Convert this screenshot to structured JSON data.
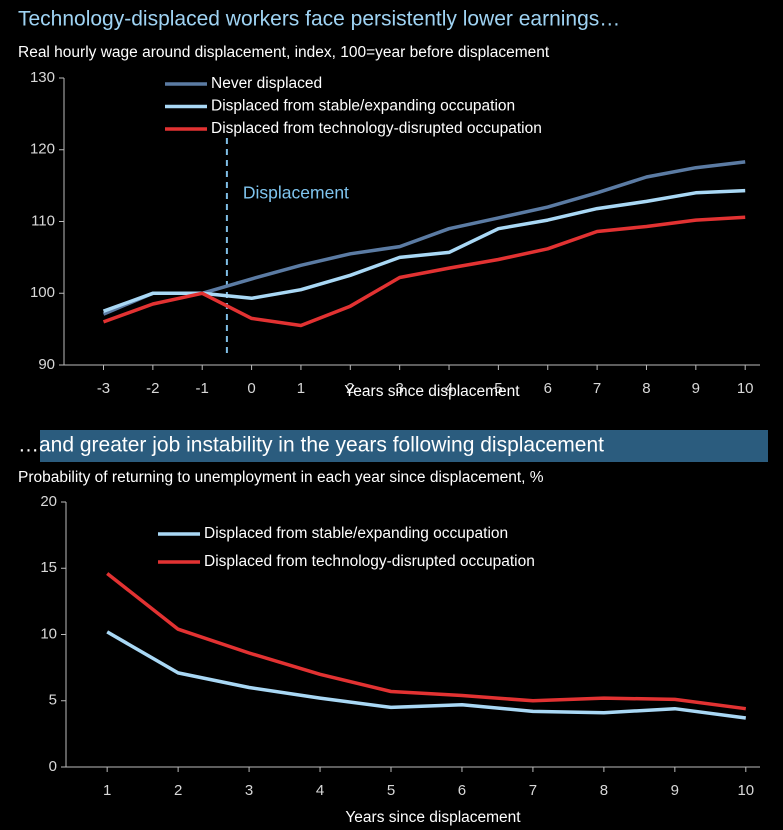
{
  "chart_data": [
    {
      "type": "line",
      "title": "Technology-displaced workers face persistently lower earnings…",
      "subtitle": "Real hourly wage around displacement, index, 100=year before displacement",
      "x_label": "Years since displacement",
      "annotation": "Displacement",
      "vline": -0.5,
      "x": [
        -3,
        -2,
        -1,
        0,
        1,
        2,
        3,
        4,
        5,
        6,
        7,
        8,
        9,
        10
      ],
      "xlim": [
        -3.8,
        10.3
      ],
      "xticks": [
        -3,
        -2,
        -1,
        0,
        1,
        2,
        3,
        4,
        5,
        6,
        7,
        8,
        9,
        10
      ],
      "ylim": [
        90,
        130
      ],
      "yticks": [
        90,
        100,
        110,
        120,
        130
      ],
      "series": [
        {
          "name": "Never displaced",
          "color": "#5b7ba3",
          "values": [
            97.1,
            100,
            100,
            102,
            103.9,
            105.5,
            106.5,
            109,
            110.5,
            112,
            114,
            116.2,
            117.5,
            118.3
          ]
        },
        {
          "name": "Displaced from stable/expanding occupation",
          "color": "#a9d8f5",
          "values": [
            97.5,
            100,
            100,
            99.3,
            100.5,
            102.5,
            105,
            105.7,
            109,
            110.2,
            111.8,
            112.8,
            114,
            114.3
          ]
        },
        {
          "name": "Displaced from technology-disrupted occupation",
          "color": "#e23232",
          "values": [
            96,
            98.5,
            100,
            96.5,
            95.5,
            98.2,
            102.2,
            103.5,
            104.7,
            106.2,
            108.6,
            109.3,
            110.2,
            110.6
          ]
        }
      ]
    },
    {
      "type": "line",
      "title": "…and greater job instability in the years following displacement",
      "subtitle": "Probability of returning to unemployment in each year since displacement, %",
      "x_label": "Years since displacement",
      "x": [
        1,
        2,
        3,
        4,
        5,
        6,
        7,
        8,
        9,
        10
      ],
      "xlim": [
        0.42,
        10.2
      ],
      "xticks": [
        1,
        2,
        3,
        4,
        5,
        6,
        7,
        8,
        9,
        10
      ],
      "ylim": [
        0,
        20
      ],
      "yticks": [
        0,
        5,
        10,
        15,
        20
      ],
      "series": [
        {
          "name": "Displaced from stable/expanding occupation",
          "color": "#a9d8f5",
          "values": [
            10.2,
            7.1,
            6.0,
            5.2,
            4.5,
            4.7,
            4.2,
            4.1,
            4.4,
            3.7
          ]
        },
        {
          "name": "Displaced from technology-disrupted occupation",
          "color": "#e23232",
          "values": [
            14.6,
            10.4,
            8.6,
            7.0,
            5.7,
            5.4,
            5.0,
            5.2,
            5.1,
            4.4
          ]
        }
      ]
    }
  ]
}
